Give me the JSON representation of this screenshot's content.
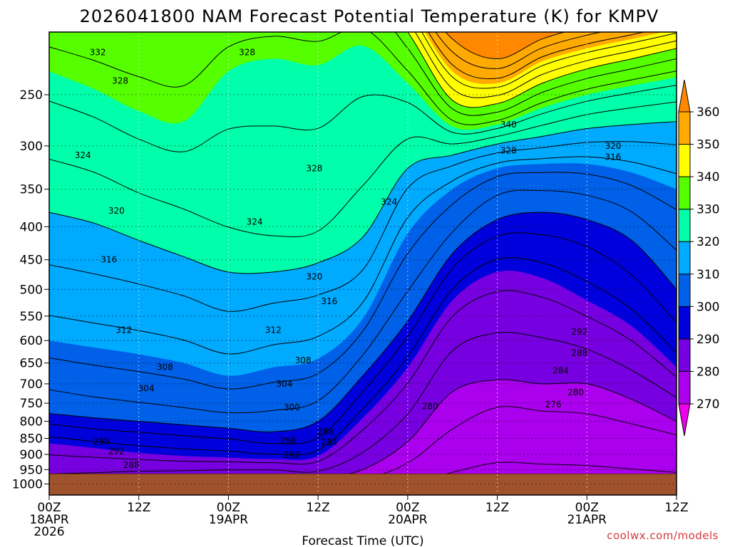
{
  "chart_data": {
    "type": "heatmap",
    "title": "2026041800 NAM Forecast Potential Temperature (K) for KMPV",
    "xlabel": "Forecast Time (UTC)",
    "ylabel": "",
    "credit": "coolwx.com/models",
    "units": "K",
    "x_ticks": [
      {
        "hours": 0,
        "lines": [
          "00Z",
          "18APR",
          "2026"
        ]
      },
      {
        "hours": 12,
        "lines": [
          "12Z"
        ]
      },
      {
        "hours": 24,
        "lines": [
          "00Z",
          "19APR"
        ]
      },
      {
        "hours": 36,
        "lines": [
          "12Z"
        ]
      },
      {
        "hours": 48,
        "lines": [
          "00Z",
          "20APR"
        ]
      },
      {
        "hours": 60,
        "lines": [
          "12Z"
        ]
      },
      {
        "hours": 72,
        "lines": [
          "00Z",
          "21APR"
        ]
      },
      {
        "hours": 84,
        "lines": [
          "12Z"
        ]
      }
    ],
    "xlim": [
      0,
      84
    ],
    "y_ticks": [
      250,
      300,
      350,
      400,
      450,
      500,
      550,
      600,
      650,
      700,
      750,
      800,
      850,
      900,
      950,
      1000
    ],
    "ylim": [
      200,
      1040
    ],
    "y_scale": "log",
    "grid": true,
    "surface_pressure_hpa": 965,
    "colorbar": {
      "levels": [
        270,
        280,
        290,
        300,
        310,
        320,
        330,
        340,
        350,
        360
      ],
      "colors": [
        "#ee00ee",
        "#aa00ee",
        "#7700e0",
        "#0000dd",
        "#0060e8",
        "#00aaff",
        "#00ffaa",
        "#55ff00",
        "#ffff00",
        "#ffaa00",
        "#ff8800"
      ]
    },
    "field_columns": [
      {
        "hours": 0,
        "isentropes": [
          [
            270,
            1040
          ],
          [
            285,
            960
          ],
          [
            290,
            865
          ],
          [
            295,
            815
          ],
          [
            300,
            778
          ],
          [
            305,
            700
          ],
          [
            310,
            600
          ],
          [
            315,
            480
          ],
          [
            320,
            380
          ],
          [
            325,
            300
          ],
          [
            330,
            230
          ],
          [
            335,
            185
          ],
          [
            340,
            165
          ],
          [
            350,
            140
          ],
          [
            360,
            120
          ]
        ]
      },
      {
        "hours": 6,
        "isentropes": [
          [
            270,
            1040
          ],
          [
            285,
            955
          ],
          [
            290,
            880
          ],
          [
            295,
            830
          ],
          [
            300,
            790
          ],
          [
            305,
            720
          ],
          [
            310,
            615
          ],
          [
            315,
            495
          ],
          [
            320,
            395
          ],
          [
            325,
            315
          ],
          [
            330,
            245
          ],
          [
            335,
            190
          ],
          [
            340,
            168
          ],
          [
            350,
            142
          ],
          [
            360,
            122
          ]
        ]
      },
      {
        "hours": 12,
        "isentropes": [
          [
            270,
            1040
          ],
          [
            285,
            950
          ],
          [
            290,
            895
          ],
          [
            295,
            840
          ],
          [
            300,
            800
          ],
          [
            305,
            735
          ],
          [
            310,
            630
          ],
          [
            315,
            510
          ],
          [
            320,
            420
          ],
          [
            325,
            340
          ],
          [
            330,
            265
          ],
          [
            335,
            195
          ],
          [
            340,
            170
          ],
          [
            350,
            144
          ],
          [
            360,
            124
          ]
        ]
      },
      {
        "hours": 18,
        "isentropes": [
          [
            270,
            1040
          ],
          [
            285,
            948
          ],
          [
            290,
            905
          ],
          [
            295,
            850
          ],
          [
            300,
            810
          ],
          [
            305,
            750
          ],
          [
            310,
            650
          ],
          [
            315,
            530
          ],
          [
            320,
            445
          ],
          [
            325,
            360
          ],
          [
            330,
            275
          ],
          [
            335,
            200
          ],
          [
            340,
            172
          ],
          [
            350,
            145
          ],
          [
            360,
            125
          ]
        ]
      },
      {
        "hours": 24,
        "isentropes": [
          [
            270,
            1040
          ],
          [
            285,
            945
          ],
          [
            290,
            910
          ],
          [
            295,
            860
          ],
          [
            300,
            820
          ],
          [
            305,
            765
          ],
          [
            310,
            680
          ],
          [
            315,
            560
          ],
          [
            320,
            470
          ],
          [
            325,
            385
          ],
          [
            330,
            230
          ],
          [
            335,
            185
          ],
          [
            340,
            168
          ],
          [
            350,
            142
          ],
          [
            360,
            122
          ]
        ]
      },
      {
        "hours": 30,
        "isentropes": [
          [
            270,
            1040
          ],
          [
            285,
            945
          ],
          [
            290,
            915
          ],
          [
            295,
            875
          ],
          [
            300,
            830
          ],
          [
            305,
            755
          ],
          [
            310,
            660
          ],
          [
            315,
            540
          ],
          [
            320,
            470
          ],
          [
            325,
            400
          ],
          [
            330,
            220
          ],
          [
            335,
            180
          ],
          [
            340,
            165
          ],
          [
            350,
            140
          ],
          [
            360,
            120
          ]
        ]
      },
      {
        "hours": 36,
        "isentropes": [
          [
            270,
            1040
          ],
          [
            285,
            950
          ],
          [
            290,
            905
          ],
          [
            295,
            860
          ],
          [
            300,
            800
          ],
          [
            305,
            730
          ],
          [
            310,
            640
          ],
          [
            315,
            525
          ],
          [
            320,
            455
          ],
          [
            325,
            395
          ],
          [
            330,
            225
          ],
          [
            335,
            182
          ],
          [
            340,
            165
          ],
          [
            350,
            140
          ],
          [
            360,
            120
          ]
        ]
      },
      {
        "hours": 42,
        "isentropes": [
          [
            270,
            1040
          ],
          [
            280,
            950
          ],
          [
            285,
            880
          ],
          [
            290,
            790
          ],
          [
            295,
            730
          ],
          [
            300,
            680
          ],
          [
            305,
            620
          ],
          [
            310,
            555
          ],
          [
            315,
            480
          ],
          [
            320,
            415
          ],
          [
            325,
            330
          ],
          [
            330,
            210
          ],
          [
            335,
            180
          ],
          [
            340,
            165
          ],
          [
            350,
            140
          ],
          [
            360,
            120
          ]
        ]
      },
      {
        "hours": 48,
        "isentropes": [
          [
            270,
            1040
          ],
          [
            280,
            860
          ],
          [
            285,
            760
          ],
          [
            290,
            660
          ],
          [
            295,
            600
          ],
          [
            300,
            560
          ],
          [
            305,
            490
          ],
          [
            310,
            410
          ],
          [
            315,
            355
          ],
          [
            320,
            325
          ],
          [
            325,
            285
          ],
          [
            330,
            240
          ],
          [
            335,
            215
          ],
          [
            340,
            200
          ],
          [
            350,
            180
          ],
          [
            360,
            165
          ]
        ]
      },
      {
        "hours": 54,
        "isentropes": [
          [
            270,
            1040
          ],
          [
            275,
            850
          ],
          [
            280,
            720
          ],
          [
            285,
            600
          ],
          [
            290,
            520
          ],
          [
            295,
            470
          ],
          [
            300,
            440
          ],
          [
            305,
            400
          ],
          [
            310,
            350
          ],
          [
            315,
            325
          ],
          [
            320,
            310
          ],
          [
            325,
            295
          ],
          [
            330,
            280
          ],
          [
            335,
            265
          ],
          [
            340,
            255
          ],
          [
            350,
            230
          ],
          [
            360,
            205
          ]
        ]
      },
      {
        "hours": 60,
        "isentropes": [
          [
            270,
            1040
          ],
          [
            275,
            780
          ],
          [
            280,
            690
          ],
          [
            285,
            560
          ],
          [
            290,
            470
          ],
          [
            295,
            420
          ],
          [
            300,
            390
          ],
          [
            305,
            350
          ],
          [
            310,
            325
          ],
          [
            315,
            310
          ],
          [
            320,
            298
          ],
          [
            325,
            288
          ],
          [
            330,
            278
          ],
          [
            335,
            268
          ],
          [
            340,
            258
          ],
          [
            350,
            240
          ],
          [
            360,
            220
          ]
        ]
      },
      {
        "hours": 66,
        "isentropes": [
          [
            270,
            1040
          ],
          [
            275,
            790
          ],
          [
            280,
            700
          ],
          [
            285,
            570
          ],
          [
            290,
            480
          ],
          [
            295,
            420
          ],
          [
            300,
            380
          ],
          [
            305,
            345
          ],
          [
            310,
            320
          ],
          [
            315,
            305
          ],
          [
            320,
            290
          ],
          [
            325,
            276
          ],
          [
            330,
            262
          ],
          [
            335,
            250
          ],
          [
            340,
            240
          ],
          [
            350,
            222
          ],
          [
            360,
            205
          ]
        ]
      },
      {
        "hours": 72,
        "isentropes": [
          [
            270,
            1040
          ],
          [
            275,
            800
          ],
          [
            280,
            700
          ],
          [
            285,
            600
          ],
          [
            290,
            520
          ],
          [
            295,
            440
          ],
          [
            300,
            390
          ],
          [
            305,
            350
          ],
          [
            310,
            320
          ],
          [
            315,
            300
          ],
          [
            320,
            282
          ],
          [
            325,
            265
          ],
          [
            330,
            250
          ],
          [
            335,
            238
          ],
          [
            340,
            228
          ],
          [
            350,
            212
          ],
          [
            360,
            196
          ]
        ]
      },
      {
        "hours": 78,
        "isentropes": [
          [
            270,
            1040
          ],
          [
            275,
            825
          ],
          [
            280,
            740
          ],
          [
            285,
            650
          ],
          [
            290,
            570
          ],
          [
            295,
            490
          ],
          [
            300,
            420
          ],
          [
            305,
            370
          ],
          [
            310,
            330
          ],
          [
            315,
            300
          ],
          [
            320,
            278
          ],
          [
            325,
            258
          ],
          [
            330,
            242
          ],
          [
            335,
            230
          ],
          [
            340,
            220
          ],
          [
            350,
            205
          ],
          [
            360,
            190
          ]
        ]
      },
      {
        "hours": 84,
        "isentropes": [
          [
            270,
            1040
          ],
          [
            275,
            850
          ],
          [
            280,
            800
          ],
          [
            285,
            720
          ],
          [
            290,
            660
          ],
          [
            295,
            580
          ],
          [
            300,
            500
          ],
          [
            305,
            420
          ],
          [
            310,
            350
          ],
          [
            315,
            305
          ],
          [
            320,
            275
          ],
          [
            325,
            252
          ],
          [
            330,
            235
          ],
          [
            335,
            222
          ],
          [
            340,
            212
          ],
          [
            350,
            198
          ],
          [
            360,
            184
          ]
        ]
      }
    ],
    "contour_labels": [
      {
        "text": "332",
        "hours": 6.5,
        "hpa": 215
      },
      {
        "text": "328",
        "hours": 9.5,
        "hpa": 238
      },
      {
        "text": "328",
        "hours": 26.5,
        "hpa": 215
      },
      {
        "text": "328",
        "hours": 35.5,
        "hpa": 325
      },
      {
        "text": "340",
        "hours": 61.5,
        "hpa": 278
      },
      {
        "text": "328",
        "hours": 61.5,
        "hpa": 305
      },
      {
        "text": "320",
        "hours": 75.5,
        "hpa": 300
      },
      {
        "text": "316",
        "hours": 75.5,
        "hpa": 312
      },
      {
        "text": "324",
        "hours": 4.5,
        "hpa": 310
      },
      {
        "text": "324",
        "hours": 27.5,
        "hpa": 393
      },
      {
        "text": "324",
        "hours": 45.5,
        "hpa": 366
      },
      {
        "text": "320",
        "hours": 9,
        "hpa": 378
      },
      {
        "text": "320",
        "hours": 35.5,
        "hpa": 478
      },
      {
        "text": "316",
        "hours": 8,
        "hpa": 450
      },
      {
        "text": "316",
        "hours": 37.5,
        "hpa": 522
      },
      {
        "text": "312",
        "hours": 10,
        "hpa": 578
      },
      {
        "text": "312",
        "hours": 30,
        "hpa": 578
      },
      {
        "text": "308",
        "hours": 15.5,
        "hpa": 660
      },
      {
        "text": "308",
        "hours": 34,
        "hpa": 644
      },
      {
        "text": "304",
        "hours": 13,
        "hpa": 712
      },
      {
        "text": "304",
        "hours": 31.5,
        "hpa": 700
      },
      {
        "text": "300",
        "hours": 32.5,
        "hpa": 761
      },
      {
        "text": "296",
        "hours": 7,
        "hpa": 860
      },
      {
        "text": "296",
        "hours": 32,
        "hpa": 858
      },
      {
        "text": "292",
        "hours": 9,
        "hpa": 890
      },
      {
        "text": "292",
        "hours": 32.5,
        "hpa": 902
      },
      {
        "text": "288",
        "hours": 11,
        "hpa": 935
      },
      {
        "text": "288",
        "hours": 37,
        "hpa": 830
      },
      {
        "text": "284",
        "hours": 37.5,
        "hpa": 862
      },
      {
        "text": "280",
        "hours": 51,
        "hpa": 758
      },
      {
        "text": "292",
        "hours": 71,
        "hpa": 582
      },
      {
        "text": "288",
        "hours": 71,
        "hpa": 627
      },
      {
        "text": "284",
        "hours": 68.5,
        "hpa": 668
      },
      {
        "text": "280",
        "hours": 70.5,
        "hpa": 722
      },
      {
        "text": "276",
        "hours": 67.5,
        "hpa": 754
      }
    ]
  }
}
